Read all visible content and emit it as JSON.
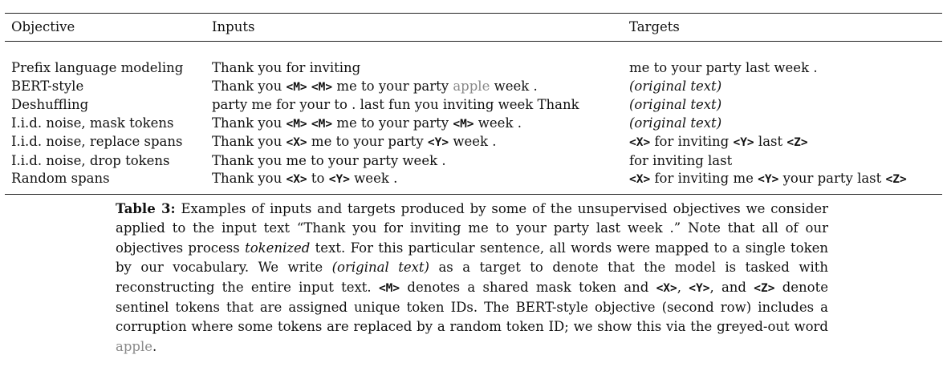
{
  "table": {
    "headers": [
      "Objective",
      "Inputs",
      "Targets"
    ],
    "rows": [
      {
        "objective": "Prefix language modeling",
        "inputs": [
          {
            "t": "Thank you for inviting"
          }
        ],
        "targets": [
          {
            "t": "me to your party last week ."
          }
        ]
      },
      {
        "objective": "BERT-style",
        "inputs": [
          {
            "t": "Thank you "
          },
          {
            "t": "<M>",
            "s": "mono"
          },
          {
            "t": " "
          },
          {
            "t": "<M>",
            "s": "mono"
          },
          {
            "t": " me to your party "
          },
          {
            "t": "apple",
            "s": "grey"
          },
          {
            "t": " week ."
          }
        ],
        "targets": [
          {
            "t": "(original text)",
            "s": "ital"
          }
        ]
      },
      {
        "objective": "Deshuffling",
        "inputs": [
          {
            "t": "party me for your to . last fun you inviting week Thank"
          }
        ],
        "targets": [
          {
            "t": "(original text)",
            "s": "ital"
          }
        ]
      },
      {
        "objective": "I.i.d. noise, mask tokens",
        "inputs": [
          {
            "t": "Thank you "
          },
          {
            "t": "<M>",
            "s": "mono"
          },
          {
            "t": " "
          },
          {
            "t": "<M>",
            "s": "mono"
          },
          {
            "t": " me to your party "
          },
          {
            "t": "<M>",
            "s": "mono"
          },
          {
            "t": " week ."
          }
        ],
        "targets": [
          {
            "t": "(original text)",
            "s": "ital"
          }
        ]
      },
      {
        "objective": "I.i.d. noise, replace spans",
        "inputs": [
          {
            "t": "Thank you "
          },
          {
            "t": "<X>",
            "s": "mono"
          },
          {
            "t": " me to your party "
          },
          {
            "t": "<Y>",
            "s": "mono"
          },
          {
            "t": " week ."
          }
        ],
        "targets": [
          {
            "t": "<X>",
            "s": "mono"
          },
          {
            "t": " for inviting "
          },
          {
            "t": "<Y>",
            "s": "mono"
          },
          {
            "t": " last "
          },
          {
            "t": "<Z>",
            "s": "mono"
          }
        ]
      },
      {
        "objective": "I.i.d. noise, drop tokens",
        "inputs": [
          {
            "t": "Thank you me to your party week ."
          }
        ],
        "targets": [
          {
            "t": "for inviting last"
          }
        ]
      },
      {
        "objective": "Random spans",
        "inputs": [
          {
            "t": "Thank you "
          },
          {
            "t": "<X>",
            "s": "mono"
          },
          {
            "t": " to "
          },
          {
            "t": "<Y>",
            "s": "mono"
          },
          {
            "t": " week ."
          }
        ],
        "targets": [
          {
            "t": "<X>",
            "s": "mono"
          },
          {
            "t": " for inviting me "
          },
          {
            "t": "<Y>",
            "s": "mono"
          },
          {
            "t": " your party last "
          },
          {
            "t": "<Z>",
            "s": "mono"
          }
        ]
      }
    ]
  },
  "caption": {
    "label": "Table 3:",
    "segments": [
      {
        "t": " Examples of inputs and targets produced by some of the unsupervised objectives we consider applied to the input text “Thank you for inviting me to your party last week .” Note that all of our objectives process "
      },
      {
        "t": "tokenized",
        "s": "ital"
      },
      {
        "t": " text. For this particular sentence, all words were mapped to a single token by our vocabulary. We write "
      },
      {
        "t": "(original text)",
        "s": "ital"
      },
      {
        "t": " as a target to denote that the model is tasked with reconstructing the entire input text. "
      },
      {
        "t": "<M>",
        "s": "mono"
      },
      {
        "t": " denotes a shared mask token and "
      },
      {
        "t": "<X>",
        "s": "mono"
      },
      {
        "t": ", "
      },
      {
        "t": "<Y>",
        "s": "mono"
      },
      {
        "t": ", and "
      },
      {
        "t": "<Z>",
        "s": "mono"
      },
      {
        "t": " denote sentinel tokens that are assigned unique token IDs. The BERT-style objective (second row) includes a corruption where some tokens are replaced by a random token ID; we show this via the greyed-out word "
      },
      {
        "t": "apple",
        "s": "grey"
      },
      {
        "t": "."
      }
    ]
  }
}
